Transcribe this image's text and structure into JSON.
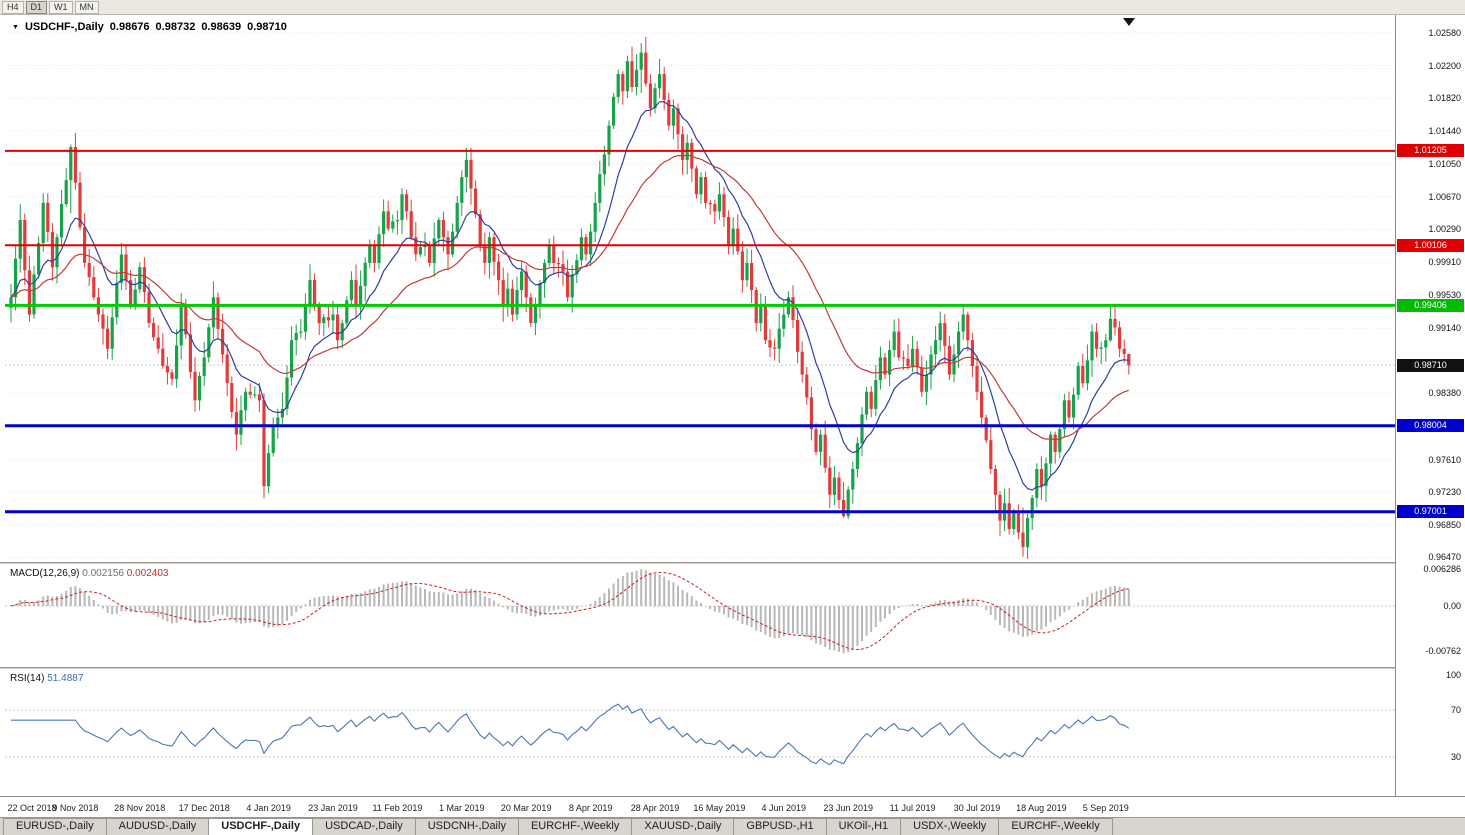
{
  "toolbar": {
    "timeframes": [
      "H4",
      "D1",
      "W1",
      "MN"
    ],
    "active": "D1"
  },
  "icons": {
    "dropdown": "▼"
  },
  "chart_header": {
    "symbol": "USDCHF-,Daily",
    "open": "0.98676",
    "high": "0.98732",
    "low": "0.98639",
    "close": "0.98710"
  },
  "current_price": 0.9871,
  "price_axis": {
    "labels": [
      "1.02580",
      "1.02200",
      "1.01820",
      "1.01440",
      "1.01050",
      "1.00670",
      "1.00290",
      "0.99910",
      "0.99530",
      "0.99140",
      "0.98380",
      "0.97610",
      "0.97230",
      "0.96850",
      "0.96470"
    ],
    "grid": [
      1.0258,
      1.022,
      1.0182,
      1.0144,
      1.0105,
      1.0067,
      1.0029,
      0.9991,
      0.9953,
      0.9914,
      0.9876,
      0.9838,
      0.98,
      0.9761,
      0.9723,
      0.9685,
      0.9647
    ]
  },
  "price_tags": [
    {
      "text": "1.01205",
      "color": "#e00000"
    },
    {
      "text": "1.00106",
      "color": "#e00000"
    },
    {
      "text": "0.99406",
      "color": "#00bb00"
    },
    {
      "text": "0.98710",
      "color": "#111111"
    },
    {
      "text": "0.98004",
      "color": "#0000cc"
    },
    {
      "text": "0.97001",
      "color": "#0000cc"
    }
  ],
  "chart_data": {
    "type": "candlestick",
    "symbol": "USDCHF",
    "timeframe": "Daily",
    "title": "USDCHF-,Daily 0.98676 0.98732 0.98639 0.98710",
    "ylim": [
      0.9644,
      1.0273
    ],
    "bar_count": 244,
    "colors": {
      "up": "#19a24a",
      "down": "#e23b3b"
    },
    "close_anchors": [
      [
        0,
        0.995
      ],
      [
        2,
        1.004
      ],
      [
        4,
        0.993
      ],
      [
        7,
        1.006
      ],
      [
        9,
        0.9985
      ],
      [
        13,
        1.0125
      ],
      [
        16,
        0.999
      ],
      [
        18,
        0.995
      ],
      [
        21,
        0.989
      ],
      [
        24,
        1.0
      ],
      [
        26,
        0.994
      ],
      [
        28,
        0.9985
      ],
      [
        30,
        0.992
      ],
      [
        33,
        0.987
      ],
      [
        35,
        0.9855
      ],
      [
        37,
        0.994
      ],
      [
        40,
        0.983
      ],
      [
        42,
        0.988
      ],
      [
        44,
        0.995
      ],
      [
        47,
        0.985
      ],
      [
        49,
        0.979
      ],
      [
        51,
        0.984
      ],
      [
        54,
        0.983
      ],
      [
        55,
        0.973
      ],
      [
        57,
        0.98
      ],
      [
        59,
        0.982
      ],
      [
        61,
        0.99
      ],
      [
        63,
        0.991
      ],
      [
        65,
        0.997
      ],
      [
        67,
        0.992
      ],
      [
        70,
        0.993
      ],
      [
        71,
        0.99
      ],
      [
        74,
        0.997
      ],
      [
        75,
        0.994
      ],
      [
        78,
        1.001
      ],
      [
        79,
        0.999
      ],
      [
        81,
        1.005
      ],
      [
        82,
        1.003
      ],
      [
        84,
        1.004
      ],
      [
        85,
        1.007
      ],
      [
        88,
        1.0
      ],
      [
        90,
        1.001
      ],
      [
        91,
        0.999
      ],
      [
        93,
        1.004
      ],
      [
        95,
        1.0
      ],
      [
        98,
        1.009
      ],
      [
        99,
        1.011
      ],
      [
        102,
        1.001
      ],
      [
        103,
        0.999
      ],
      [
        104,
        1.002
      ],
      [
        106,
        0.997
      ],
      [
        107,
        0.994
      ],
      [
        108,
        0.996
      ],
      [
        109,
        0.993
      ],
      [
        111,
        0.998
      ],
      [
        113,
        0.992
      ],
      [
        116,
        0.999
      ],
      [
        117,
        1.001
      ],
      [
        118,
        0.999
      ],
      [
        120,
        0.998
      ],
      [
        121,
        0.995
      ],
      [
        124,
        1.002
      ],
      [
        125,
        1.0
      ],
      [
        127,
        1.006
      ],
      [
        130,
        1.015
      ],
      [
        132,
        1.021
      ],
      [
        133,
        1.019
      ],
      [
        134,
        1.0225
      ],
      [
        135,
        1.0195
      ],
      [
        137,
        1.0235
      ],
      [
        139,
        1.017
      ],
      [
        141,
        1.021
      ],
      [
        143,
        1.015
      ],
      [
        144,
        1.017
      ],
      [
        146,
        1.011
      ],
      [
        147,
        1.013
      ],
      [
        149,
        1.007
      ],
      [
        150,
        1.009
      ],
      [
        151,
        1.006
      ],
      [
        153,
        1.005
      ],
      [
        154,
        1.007
      ],
      [
        156,
        1.001
      ],
      [
        157,
        1.003
      ],
      [
        159,
        0.997
      ],
      [
        160,
        0.999
      ],
      [
        162,
        0.992
      ],
      [
        163,
        0.994
      ],
      [
        164,
        0.99
      ],
      [
        166,
        0.989
      ],
      [
        168,
        0.993
      ],
      [
        169,
        0.995
      ],
      [
        172,
        0.986
      ],
      [
        175,
        0.977
      ],
      [
        176,
        0.979
      ],
      [
        178,
        0.972
      ],
      [
        179,
        0.974
      ],
      [
        181,
        0.9695
      ],
      [
        183,
        0.975
      ],
      [
        186,
        0.984
      ],
      [
        187,
        0.982
      ],
      [
        189,
        0.988
      ],
      [
        190,
        0.986
      ],
      [
        192,
        0.991
      ],
      [
        193,
        0.988
      ],
      [
        195,
        0.987
      ],
      [
        196,
        0.989
      ],
      [
        198,
        0.984
      ],
      [
        201,
        0.99
      ],
      [
        202,
        0.992
      ],
      [
        204,
        0.986
      ],
      [
        207,
        0.993
      ],
      [
        209,
        0.987
      ],
      [
        210,
        0.984
      ],
      [
        213,
        0.975
      ],
      [
        215,
        0.969
      ],
      [
        216,
        0.971
      ],
      [
        217,
        0.968
      ],
      [
        218,
        0.97
      ],
      [
        220,
        0.9659
      ],
      [
        223,
        0.975
      ],
      [
        224,
        0.973
      ],
      [
        226,
        0.979
      ],
      [
        227,
        0.977
      ],
      [
        229,
        0.983
      ],
      [
        230,
        0.981
      ],
      [
        232,
        0.987
      ],
      [
        233,
        0.985
      ],
      [
        235,
        0.991
      ],
      [
        236,
        0.989
      ],
      [
        238,
        0.99
      ],
      [
        239,
        0.9925
      ],
      [
        240,
        0.9915
      ],
      [
        241,
        0.989
      ],
      [
        243,
        0.9871
      ]
    ],
    "wick_overrides": {
      "13": [
        1.0128,
        1.0048
      ],
      "55": [
        0.9838,
        0.9716
      ],
      "99": [
        1.0124,
        1.0072
      ],
      "137": [
        1.0246,
        1.0188
      ],
      "181": [
        0.9735,
        0.9693
      ],
      "220": [
        0.9705,
        0.9648
      ],
      "239": [
        0.9941,
        0.9898
      ],
      "243": [
        0.9884,
        0.986
      ]
    },
    "moving_averages": [
      {
        "name": "ma-fast",
        "period": 12,
        "color": "#2e3f9f"
      },
      {
        "name": "ma-slow",
        "period": 34,
        "color": "#c23b3b"
      }
    ],
    "horizontal_lines": [
      {
        "price": 1.01205,
        "color": "#e00000",
        "width": 2
      },
      {
        "price": 1.00106,
        "color": "#e00000",
        "width": 2
      },
      {
        "price": 0.99406,
        "color": "#00cc00",
        "width": 3
      },
      {
        "price": 0.98004,
        "color": "#0000cc",
        "width": 3
      },
      {
        "price": 0.97001,
        "color": "#0000cc",
        "width": 3
      }
    ],
    "label_bars": [
      0,
      14,
      28,
      42,
      56,
      70,
      84,
      98,
      112,
      126,
      140,
      154,
      168,
      182,
      196,
      210,
      224,
      238
    ],
    "date_labels": [
      "22 Oct 2018",
      "9 Nov 2018",
      "28 Nov 2018",
      "17 Dec 2018",
      "4 Jan 2019",
      "23 Jan 2019",
      "11 Feb 2019",
      "1 Mar 2019",
      "20 Mar 2019",
      "8 Apr 2019",
      "28 Apr 2019",
      "16 May 2019",
      "4 Jun 2019",
      "23 Jun 2019",
      "11 Jul 2019",
      "30 Jul 2019",
      "18 Aug 2019",
      "5 Sep 2019"
    ]
  },
  "macd": {
    "label": "MACD(12,26,9)",
    "value_main": "0.002156",
    "value_signal": "0.002403",
    "axis": [
      "0.006286",
      "0.00",
      "-0.00762"
    ],
    "params": {
      "fast": 12,
      "slow": 26,
      "signal": 9
    },
    "hist_color": "#b8b8b8",
    "signal_color": "#cc2222"
  },
  "rsi": {
    "label": "RSI(14)",
    "value": "51.4887",
    "axis": [
      "100",
      "70",
      "30"
    ],
    "levels": [
      70,
      30
    ],
    "period": 14,
    "color": "#4a76b8"
  },
  "tabs": {
    "items": [
      "EURUSD-,Daily",
      "AUDUSD-,Daily",
      "USDCHF-,Daily",
      "USDCAD-,Daily",
      "USDCNH-,Daily",
      "EURCHF-,Weekly",
      "XAUUSD-,Daily",
      "GBPUSD-,H1",
      "UKOil-,H1",
      "USDX-,Weekly",
      "EURCHF-,Weekly"
    ],
    "active_index": 2
  }
}
